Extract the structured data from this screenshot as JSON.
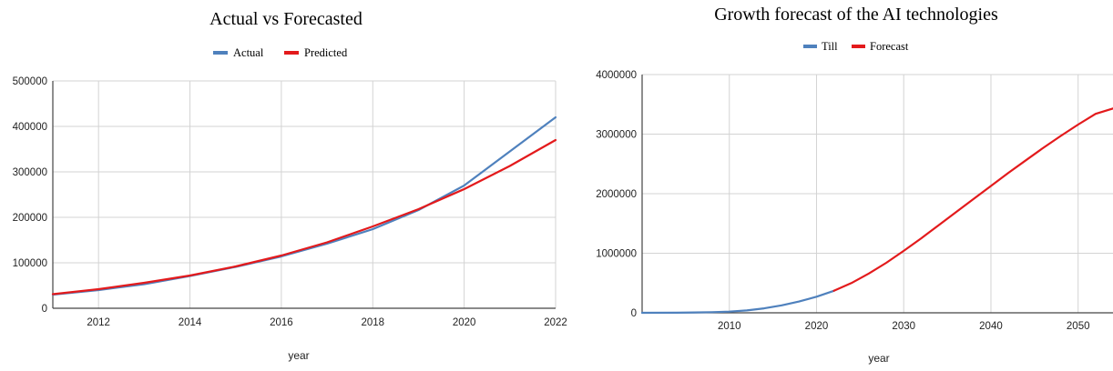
{
  "chart_data": [
    {
      "type": "line",
      "title": "Actual vs Forecasted",
      "xlabel": "year",
      "ylabel": "",
      "xlim": [
        2011,
        2022
      ],
      "ylim": [
        0,
        500000
      ],
      "x_ticks": [
        2012,
        2014,
        2016,
        2018,
        2020,
        2022
      ],
      "y_ticks": [
        0,
        100000,
        200000,
        300000,
        400000,
        500000
      ],
      "grid": true,
      "legend_position": "top",
      "series": [
        {
          "name": "Actual",
          "color": "#4f81bd",
          "x": [
            2011,
            2012,
            2013,
            2014,
            2015,
            2016,
            2017,
            2018,
            2019,
            2020,
            2021,
            2022
          ],
          "y": [
            30000,
            40000,
            53000,
            71000,
            91000,
            114000,
            142000,
            174000,
            216000,
            270000,
            345000,
            420000
          ]
        },
        {
          "name": "Predicted",
          "color": "#e31a1c",
          "x": [
            2011,
            2012,
            2013,
            2014,
            2015,
            2016,
            2017,
            2018,
            2019,
            2020,
            2021,
            2022
          ],
          "y": [
            31000,
            42000,
            56000,
            72000,
            92000,
            116000,
            145000,
            180000,
            218000,
            262000,
            313000,
            370000
          ]
        }
      ]
    },
    {
      "type": "line",
      "title": "Growth forecast of the AI technologies",
      "xlabel": "year",
      "ylabel": "",
      "xlim": [
        2000,
        2054
      ],
      "ylim": [
        0,
        4000000
      ],
      "x_ticks": [
        2010,
        2020,
        2030,
        2040,
        2050
      ],
      "y_ticks": [
        0,
        1000000,
        2000000,
        3000000,
        4000000
      ],
      "grid": true,
      "legend_position": "top",
      "series": [
        {
          "name": "Till",
          "color": "#4f81bd",
          "x": [
            2000,
            2004,
            2008,
            2010,
            2012,
            2014,
            2016,
            2018,
            2020,
            2022
          ],
          "y": [
            0,
            2000,
            10000,
            20000,
            40000,
            75000,
            125000,
            190000,
            270000,
            370000
          ]
        },
        {
          "name": "Forecast",
          "color": "#e31a1c",
          "x": [
            2022,
            2024,
            2026,
            2028,
            2030,
            2032,
            2034,
            2036,
            2038,
            2040,
            2042,
            2044,
            2046,
            2048,
            2050,
            2052,
            2054
          ],
          "y": [
            370000,
            500000,
            660000,
            840000,
            1040000,
            1250000,
            1470000,
            1690000,
            1910000,
            2130000,
            2350000,
            2560000,
            2770000,
            2970000,
            3160000,
            3340000,
            3430000
          ]
        }
      ]
    }
  ]
}
